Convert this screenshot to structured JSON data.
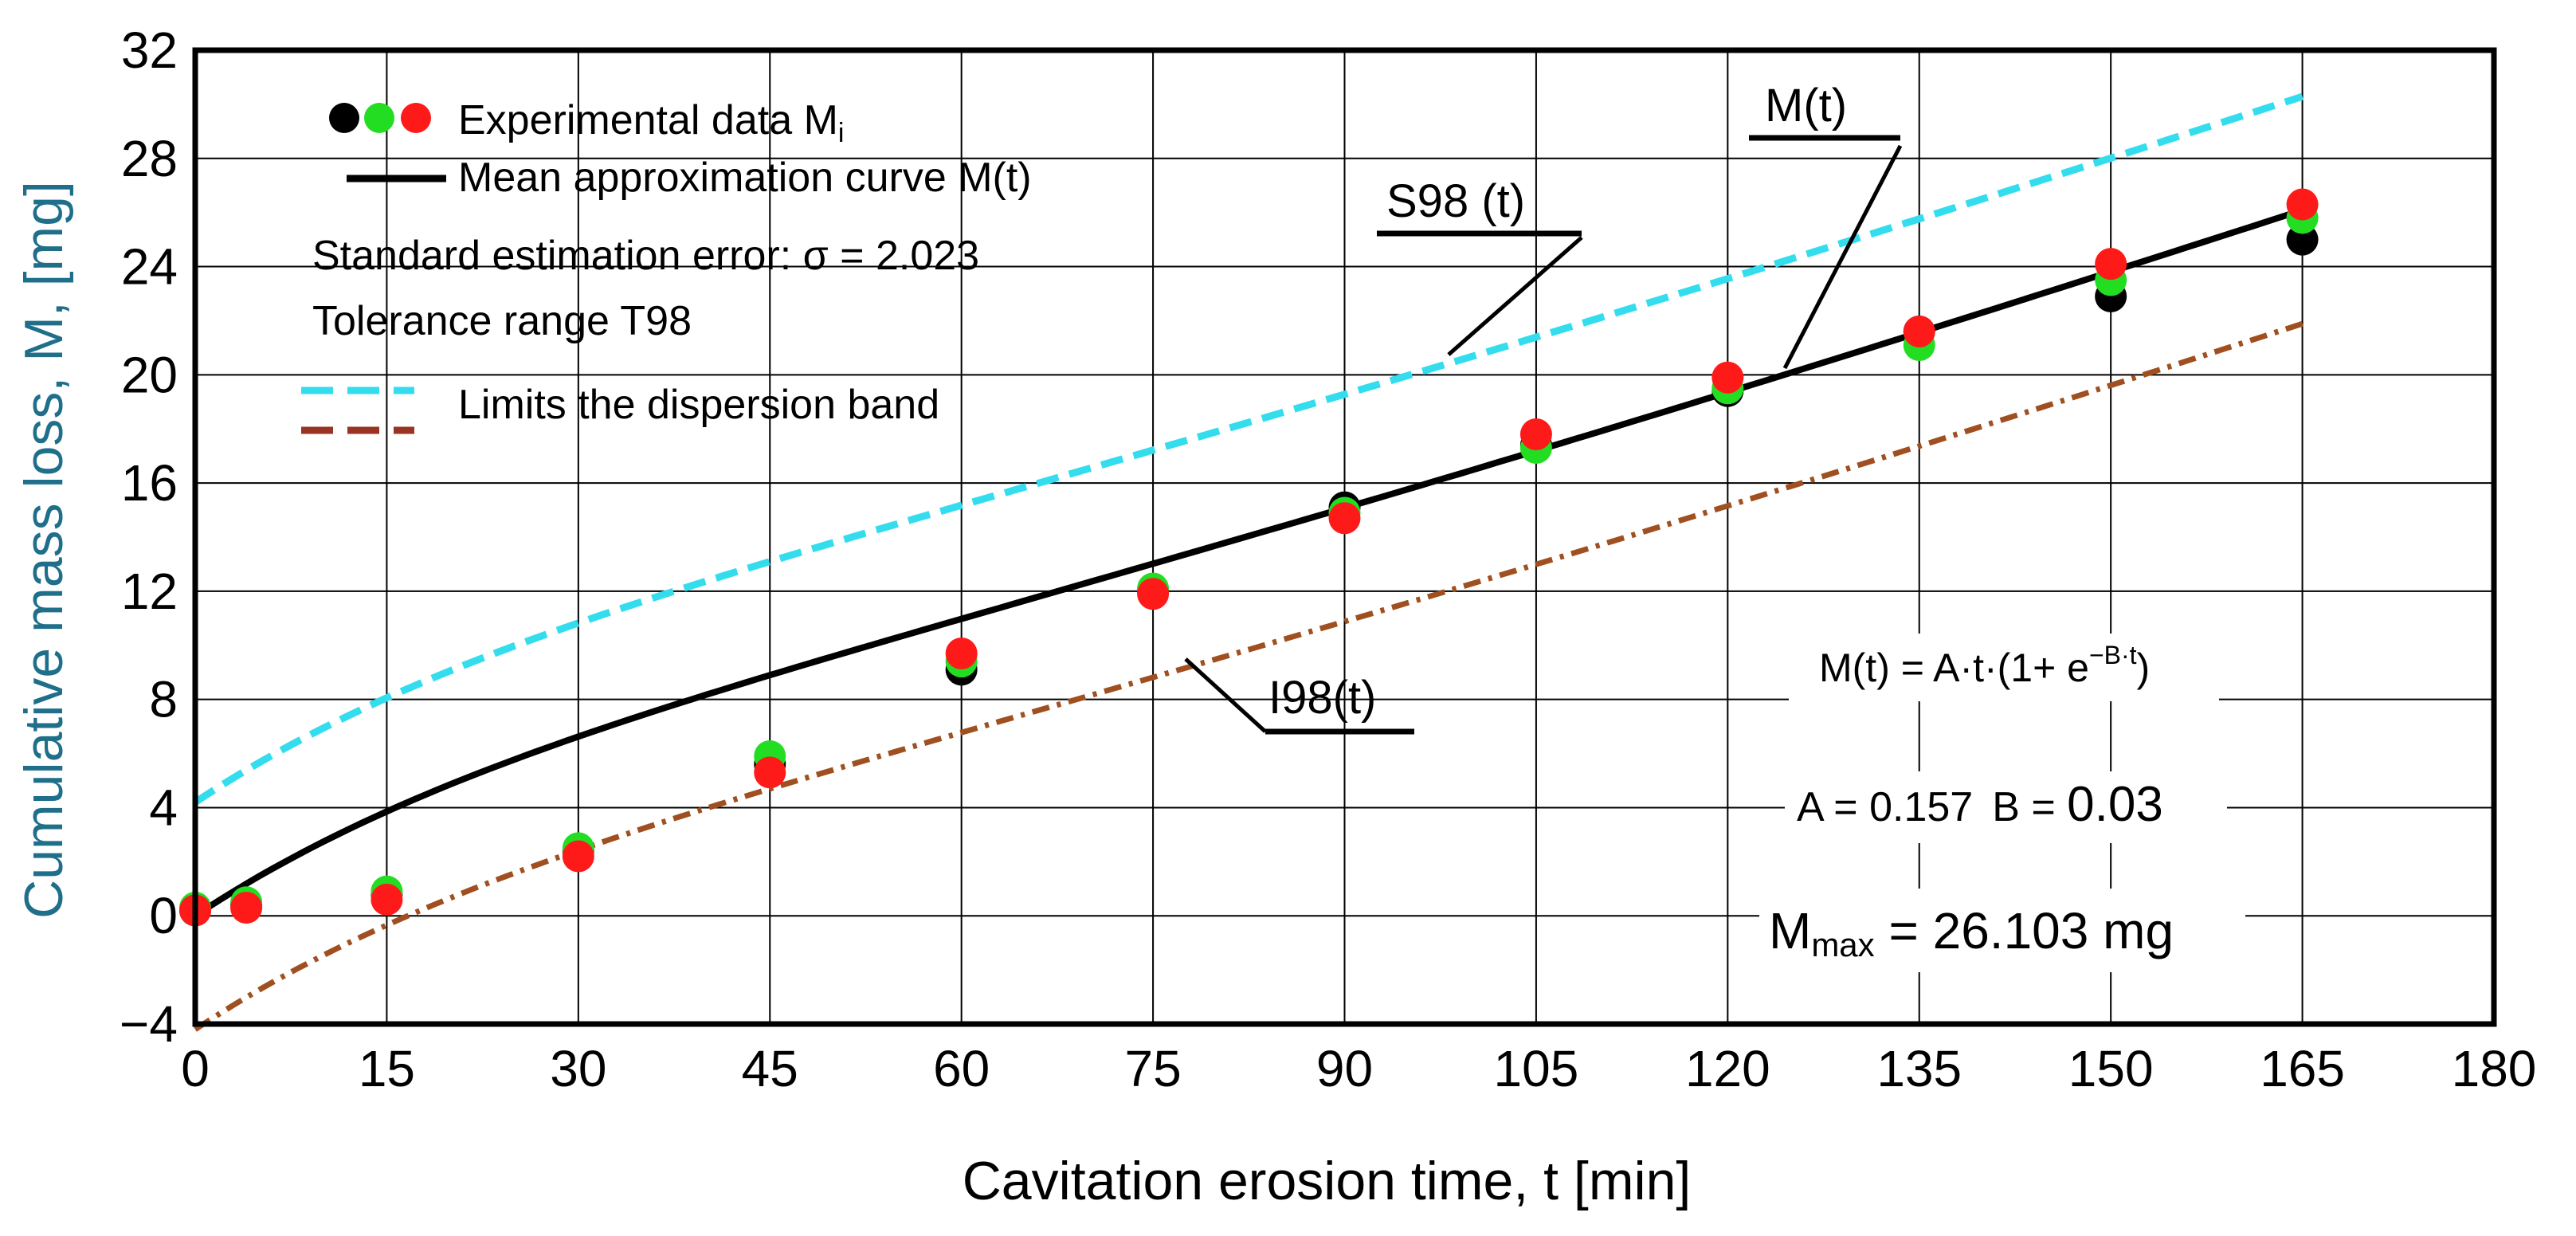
{
  "chart_data": {
    "type": "scatter",
    "xlabel": "Cavitation erosion time, t [min]",
    "ylabel": "Cumulative mass loss, M, [mg]",
    "xlim": [
      0,
      180
    ],
    "ylim": [
      -4,
      32
    ],
    "x_ticks": [
      0,
      15,
      30,
      45,
      60,
      75,
      90,
      105,
      120,
      135,
      150,
      165,
      180
    ],
    "y_ticks": [
      -4,
      0,
      4,
      8,
      12,
      16,
      20,
      24,
      28,
      32
    ],
    "x_tick_labels": [
      "0",
      "15",
      "30",
      "45",
      "60",
      "75",
      "90",
      "105",
      "120",
      "135",
      "150",
      "165",
      "180"
    ],
    "y_tick_labels": [
      "−4",
      "0",
      "4",
      "8",
      "12",
      "16",
      "20",
      "24",
      "28",
      "32"
    ],
    "grid": true,
    "fit": {
      "A": 0.157,
      "B": 0.03,
      "sigma": 2.023,
      "band_offset": 4.2,
      "t_max": 165
    },
    "series": [
      {
        "name": "Experimental data (black)",
        "kind": "points",
        "color": "#000000",
        "x": [
          0,
          4,
          15,
          30,
          45,
          60,
          75,
          90,
          105,
          120,
          135,
          150,
          165
        ],
        "y": [
          0.2,
          0.4,
          0.8,
          2.4,
          5.6,
          9.1,
          12.0,
          15.1,
          17.4,
          19.4,
          21.6,
          22.9,
          25.0
        ]
      },
      {
        "name": "Experimental data (green)",
        "kind": "points",
        "color": "#22dd22",
        "x": [
          0,
          4,
          15,
          30,
          45,
          60,
          75,
          90,
          105,
          120,
          135,
          150,
          165
        ],
        "y": [
          0.3,
          0.5,
          0.9,
          2.5,
          5.9,
          9.4,
          12.1,
          14.9,
          17.3,
          19.5,
          21.1,
          23.5,
          25.8
        ]
      },
      {
        "name": "Experimental data (red)",
        "kind": "points",
        "color": "#ff1a1a",
        "x": [
          0,
          4,
          15,
          30,
          45,
          60,
          75,
          90,
          105,
          120,
          135,
          150,
          165
        ],
        "y": [
          0.2,
          0.3,
          0.6,
          2.2,
          5.3,
          9.7,
          11.9,
          14.7,
          17.8,
          19.9,
          21.6,
          24.1,
          26.3
        ]
      }
    ],
    "legend": {
      "items": [
        {
          "label": "Experimental data M",
          "subscript": "i"
        },
        {
          "label": "Mean approximation curve M(t)"
        },
        {
          "label": "Standard estimation error: σ = 2.023"
        },
        {
          "label": "Tolerance range T98"
        },
        {
          "label": "Limits the dispersion band"
        }
      ],
      "colors": {
        "upper": "#33ddee",
        "lower": "#993322",
        "mean": "#000000"
      }
    },
    "annotations": {
      "m_label": "M(t)",
      "s98_label": "S98 (t)",
      "i98_label": "I98(t)",
      "formula_lhs": "M(t) = A·t·(1+ e",
      "formula_exp": "−B·t",
      "formula_rhs": ")",
      "params_a": "A = 0.157",
      "params_b": "B = ",
      "params_b_value": "0.03",
      "mmax_prefix": "M",
      "mmax_sub": "max",
      "mmax_value": " = 26.103 mg"
    },
    "colors": {
      "upper_band": "#33ddee",
      "lower_band": "#a05020",
      "mean_curve": "#000000",
      "grid": "#000000"
    }
  }
}
